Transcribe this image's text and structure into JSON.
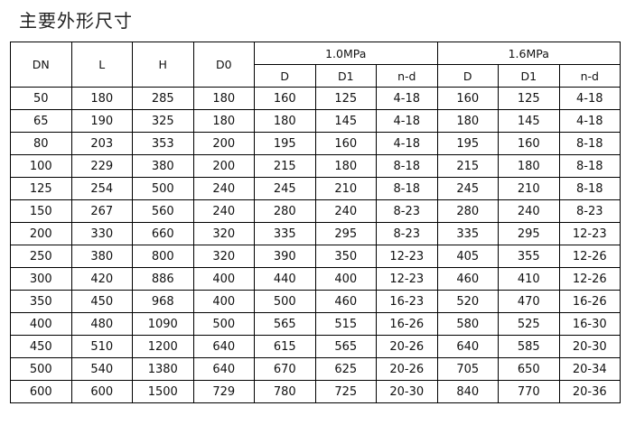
{
  "title": "主要外形尺寸",
  "headers": {
    "dn": "DN",
    "l": "L",
    "h": "H",
    "d0": "D0",
    "group1": "1.0MPa",
    "group2": "1.6MPa",
    "sub": [
      "D",
      "D1",
      "n-d",
      "D",
      "D1",
      "n-d"
    ]
  },
  "rows": [
    [
      "50",
      "180",
      "285",
      "180",
      "160",
      "125",
      "4-18",
      "160",
      "125",
      "4-18"
    ],
    [
      "65",
      "190",
      "325",
      "180",
      "180",
      "145",
      "4-18",
      "180",
      "145",
      "4-18"
    ],
    [
      "80",
      "203",
      "353",
      "200",
      "195",
      "160",
      "4-18",
      "195",
      "160",
      "8-18"
    ],
    [
      "100",
      "229",
      "380",
      "200",
      "215",
      "180",
      "8-18",
      "215",
      "180",
      "8-18"
    ],
    [
      "125",
      "254",
      "500",
      "240",
      "245",
      "210",
      "8-18",
      "245",
      "210",
      "8-18"
    ],
    [
      "150",
      "267",
      "560",
      "240",
      "280",
      "240",
      "8-23",
      "280",
      "240",
      "8-23"
    ],
    [
      "200",
      "330",
      "660",
      "320",
      "335",
      "295",
      "8-23",
      "335",
      "295",
      "12-23"
    ],
    [
      "250",
      "380",
      "800",
      "320",
      "390",
      "350",
      "12-23",
      "405",
      "355",
      "12-26"
    ],
    [
      "300",
      "420",
      "886",
      "400",
      "440",
      "400",
      "12-23",
      "460",
      "410",
      "12-26"
    ],
    [
      "350",
      "450",
      "968",
      "400",
      "500",
      "460",
      "16-23",
      "520",
      "470",
      "16-26"
    ],
    [
      "400",
      "480",
      "1090",
      "500",
      "565",
      "515",
      "16-26",
      "580",
      "525",
      "16-30"
    ],
    [
      "450",
      "510",
      "1200",
      "640",
      "615",
      "565",
      "20-26",
      "640",
      "585",
      "20-30"
    ],
    [
      "500",
      "540",
      "1380",
      "640",
      "670",
      "625",
      "20-26",
      "705",
      "650",
      "20-34"
    ],
    [
      "600",
      "600",
      "1500",
      "729",
      "780",
      "725",
      "20-30",
      "840",
      "770",
      "20-36"
    ]
  ]
}
